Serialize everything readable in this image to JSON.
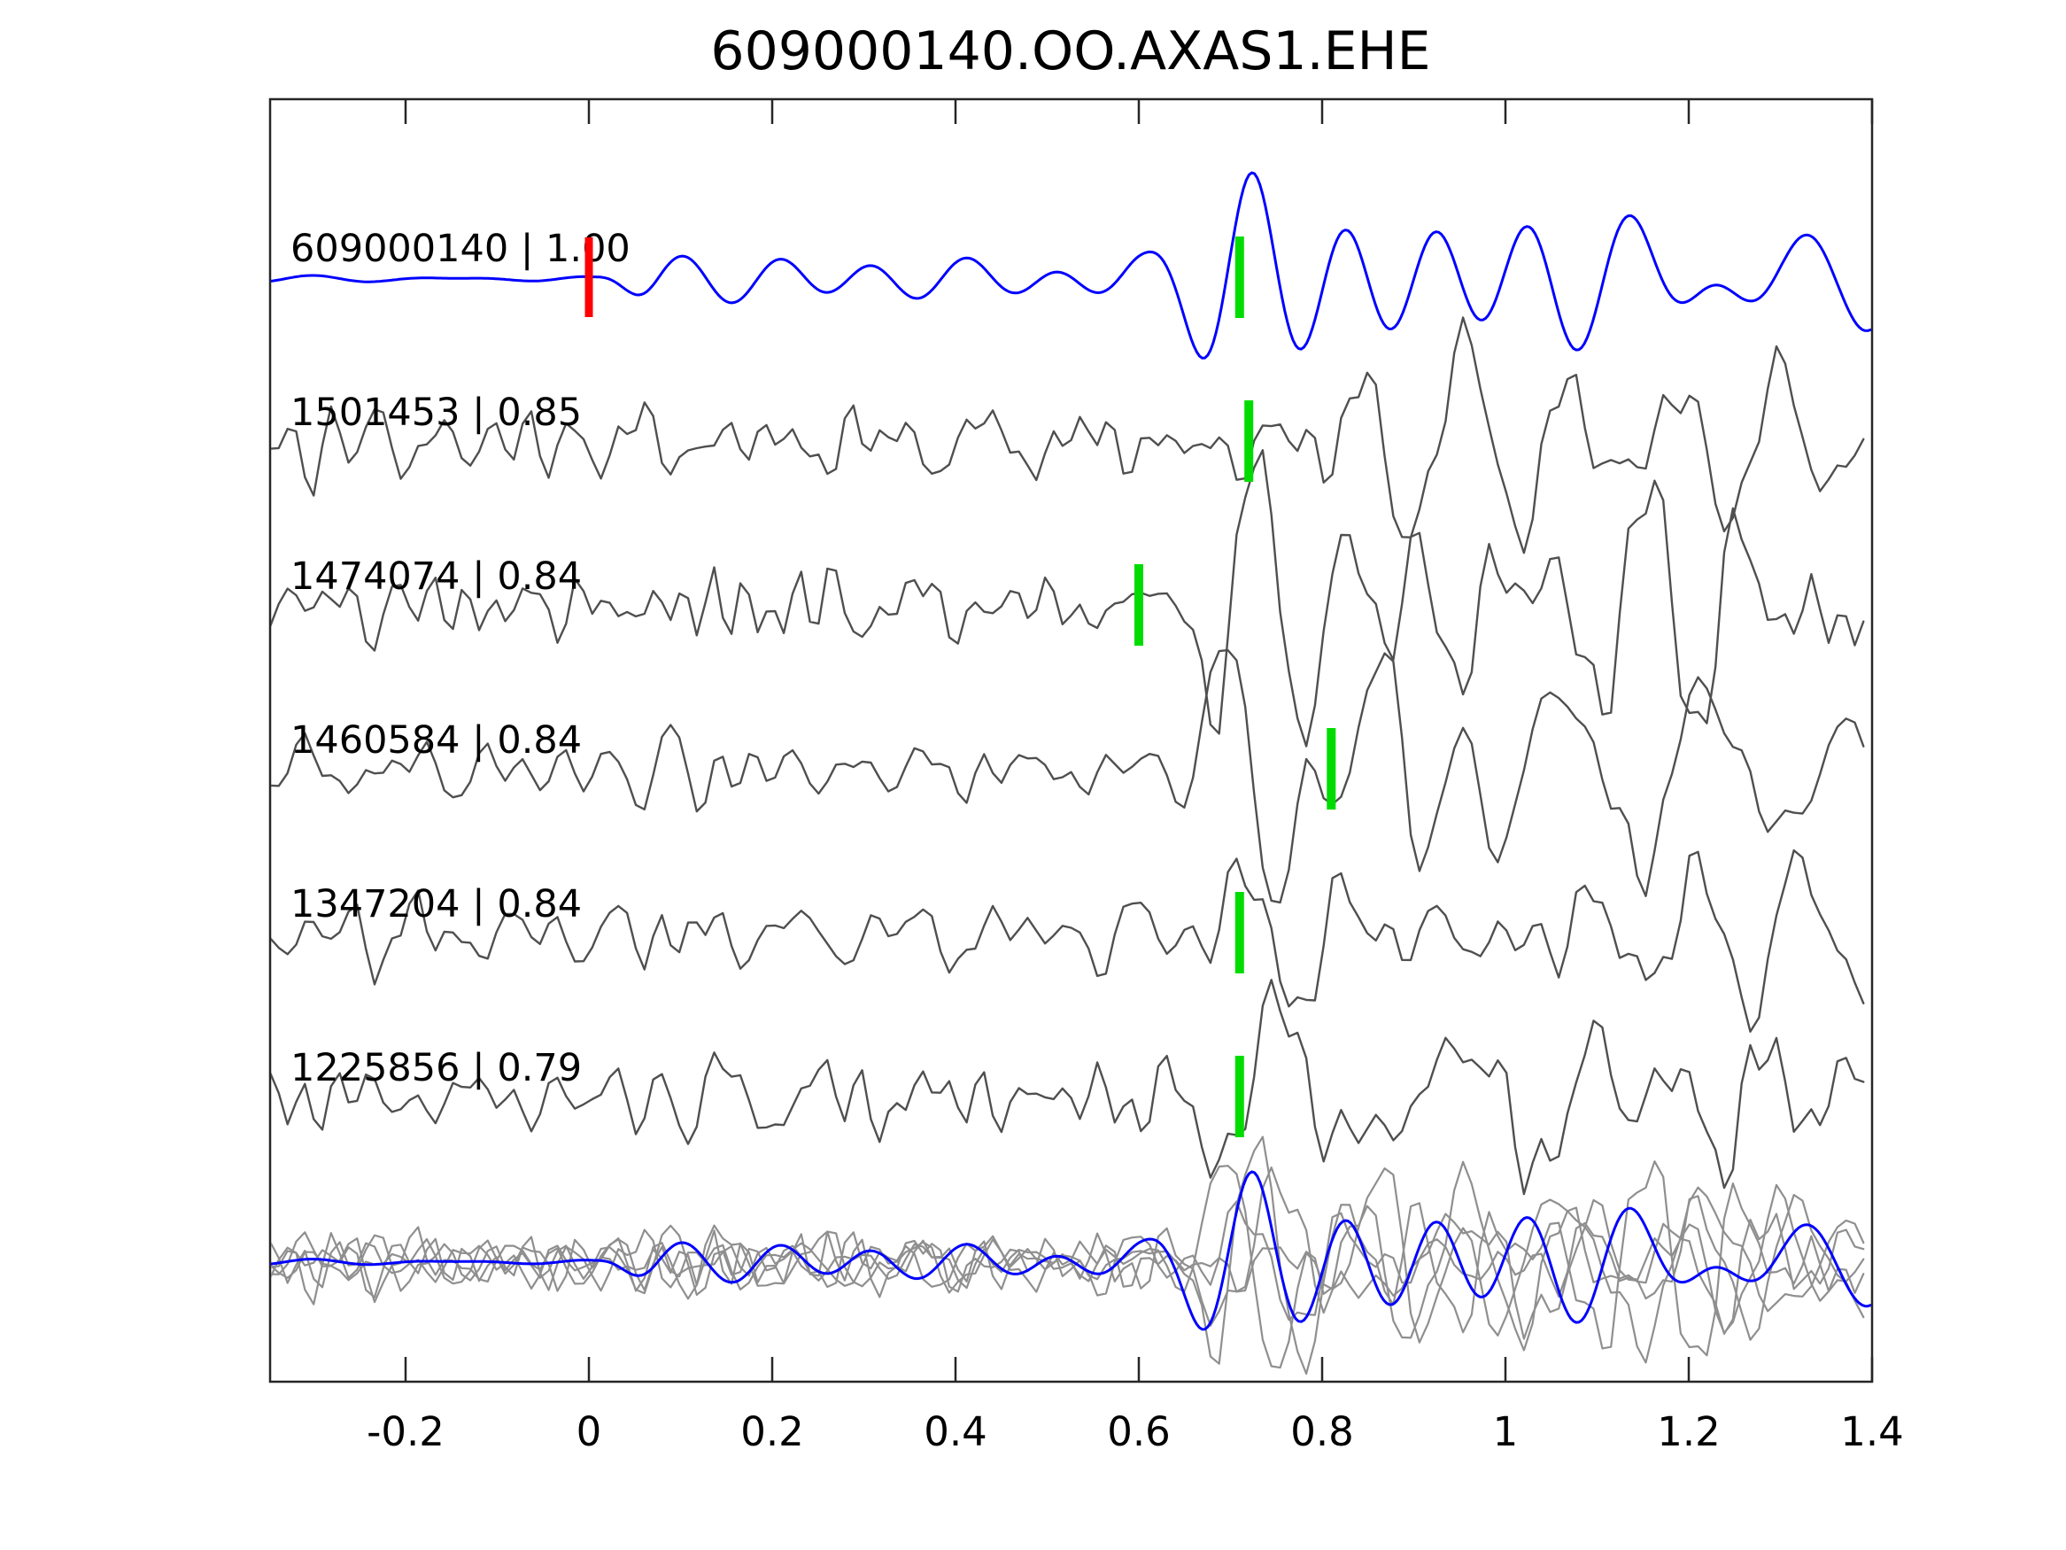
{
  "title": "609000140.OO.AXAS1.EHE",
  "colors": {
    "template_line": "#0000ff",
    "trace_line": "#4f4f4f",
    "overlay_line": "#8f8f8f",
    "template_pick": "#ff0000",
    "pick": "#00dc00",
    "axis": "#262626",
    "text": "#000000",
    "background": "#ffffff"
  },
  "chart_data": {
    "type": "line",
    "title": "609000140.OO.AXAS1.EHE",
    "xlabel": "",
    "ylabel": "",
    "xlim": [
      -0.35,
      1.4
    ],
    "grid": false,
    "legend": "none",
    "xticks": [
      -0.2,
      0,
      0.2,
      0.4,
      0.6,
      0.8,
      1,
      1.2,
      1.4
    ],
    "xtick_labels": [
      "-0.2",
      "0",
      "0.2",
      "0.4",
      "0.6",
      "0.8",
      "1",
      "1.2",
      "1.4"
    ],
    "traces": [
      {
        "label": "609000140 | 1.00",
        "id": "609000140",
        "correlation": 1.0,
        "line_color": "blue",
        "markers": [
          {
            "color": "red",
            "time": 0.0
          },
          {
            "color": "green",
            "time": 0.71
          }
        ]
      },
      {
        "label": "1501453 | 0.85",
        "id": "1501453",
        "correlation": 0.85,
        "line_color": "gray",
        "markers": [
          {
            "color": "green",
            "time": 0.72
          }
        ]
      },
      {
        "label": "1474074 | 0.84",
        "id": "1474074",
        "correlation": 0.84,
        "line_color": "gray",
        "markers": [
          {
            "color": "green",
            "time": 0.6
          }
        ]
      },
      {
        "label": "1460584 | 0.84",
        "id": "1460584",
        "correlation": 0.84,
        "line_color": "gray",
        "markers": [
          {
            "color": "green",
            "time": 0.81
          }
        ]
      },
      {
        "label": "1347204 | 0.84",
        "id": "1347204",
        "correlation": 0.84,
        "line_color": "gray",
        "markers": [
          {
            "color": "green",
            "time": 0.71
          }
        ]
      },
      {
        "label": "1225856 | 0.79",
        "id": "1225856",
        "correlation": 0.79,
        "line_color": "gray",
        "markers": [
          {
            "color": "green",
            "time": 0.71
          }
        ]
      }
    ],
    "overlay_panel": {
      "description": "all traces superimposed",
      "gray_traces": 5,
      "blue_trace": 1
    }
  }
}
